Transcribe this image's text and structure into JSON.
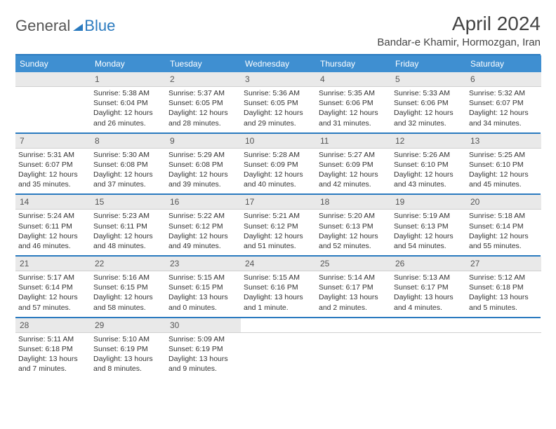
{
  "brand": {
    "part1": "General",
    "part2": "Blue"
  },
  "title": "April 2024",
  "location": "Bandar-e Khamir, Hormozgan, Iran",
  "weekdays": [
    "Sunday",
    "Monday",
    "Tuesday",
    "Wednesday",
    "Thursday",
    "Friday",
    "Saturday"
  ],
  "colors": {
    "accent": "#3f8fd1",
    "rule": "#2a7abf",
    "dayrow": "#e9e9e9"
  },
  "weeks": [
    {
      "nums": [
        "",
        "1",
        "2",
        "3",
        "4",
        "5",
        "6"
      ],
      "cells": [
        {
          "sunrise": "",
          "sunset": "",
          "daylight": ""
        },
        {
          "sunrise": "Sunrise: 5:38 AM",
          "sunset": "Sunset: 6:04 PM",
          "daylight": "Daylight: 12 hours and 26 minutes."
        },
        {
          "sunrise": "Sunrise: 5:37 AM",
          "sunset": "Sunset: 6:05 PM",
          "daylight": "Daylight: 12 hours and 28 minutes."
        },
        {
          "sunrise": "Sunrise: 5:36 AM",
          "sunset": "Sunset: 6:05 PM",
          "daylight": "Daylight: 12 hours and 29 minutes."
        },
        {
          "sunrise": "Sunrise: 5:35 AM",
          "sunset": "Sunset: 6:06 PM",
          "daylight": "Daylight: 12 hours and 31 minutes."
        },
        {
          "sunrise": "Sunrise: 5:33 AM",
          "sunset": "Sunset: 6:06 PM",
          "daylight": "Daylight: 12 hours and 32 minutes."
        },
        {
          "sunrise": "Sunrise: 5:32 AM",
          "sunset": "Sunset: 6:07 PM",
          "daylight": "Daylight: 12 hours and 34 minutes."
        }
      ]
    },
    {
      "nums": [
        "7",
        "8",
        "9",
        "10",
        "11",
        "12",
        "13"
      ],
      "cells": [
        {
          "sunrise": "Sunrise: 5:31 AM",
          "sunset": "Sunset: 6:07 PM",
          "daylight": "Daylight: 12 hours and 35 minutes."
        },
        {
          "sunrise": "Sunrise: 5:30 AM",
          "sunset": "Sunset: 6:08 PM",
          "daylight": "Daylight: 12 hours and 37 minutes."
        },
        {
          "sunrise": "Sunrise: 5:29 AM",
          "sunset": "Sunset: 6:08 PM",
          "daylight": "Daylight: 12 hours and 39 minutes."
        },
        {
          "sunrise": "Sunrise: 5:28 AM",
          "sunset": "Sunset: 6:09 PM",
          "daylight": "Daylight: 12 hours and 40 minutes."
        },
        {
          "sunrise": "Sunrise: 5:27 AM",
          "sunset": "Sunset: 6:09 PM",
          "daylight": "Daylight: 12 hours and 42 minutes."
        },
        {
          "sunrise": "Sunrise: 5:26 AM",
          "sunset": "Sunset: 6:10 PM",
          "daylight": "Daylight: 12 hours and 43 minutes."
        },
        {
          "sunrise": "Sunrise: 5:25 AM",
          "sunset": "Sunset: 6:10 PM",
          "daylight": "Daylight: 12 hours and 45 minutes."
        }
      ]
    },
    {
      "nums": [
        "14",
        "15",
        "16",
        "17",
        "18",
        "19",
        "20"
      ],
      "cells": [
        {
          "sunrise": "Sunrise: 5:24 AM",
          "sunset": "Sunset: 6:11 PM",
          "daylight": "Daylight: 12 hours and 46 minutes."
        },
        {
          "sunrise": "Sunrise: 5:23 AM",
          "sunset": "Sunset: 6:11 PM",
          "daylight": "Daylight: 12 hours and 48 minutes."
        },
        {
          "sunrise": "Sunrise: 5:22 AM",
          "sunset": "Sunset: 6:12 PM",
          "daylight": "Daylight: 12 hours and 49 minutes."
        },
        {
          "sunrise": "Sunrise: 5:21 AM",
          "sunset": "Sunset: 6:12 PM",
          "daylight": "Daylight: 12 hours and 51 minutes."
        },
        {
          "sunrise": "Sunrise: 5:20 AM",
          "sunset": "Sunset: 6:13 PM",
          "daylight": "Daylight: 12 hours and 52 minutes."
        },
        {
          "sunrise": "Sunrise: 5:19 AM",
          "sunset": "Sunset: 6:13 PM",
          "daylight": "Daylight: 12 hours and 54 minutes."
        },
        {
          "sunrise": "Sunrise: 5:18 AM",
          "sunset": "Sunset: 6:14 PM",
          "daylight": "Daylight: 12 hours and 55 minutes."
        }
      ]
    },
    {
      "nums": [
        "21",
        "22",
        "23",
        "24",
        "25",
        "26",
        "27"
      ],
      "cells": [
        {
          "sunrise": "Sunrise: 5:17 AM",
          "sunset": "Sunset: 6:14 PM",
          "daylight": "Daylight: 12 hours and 57 minutes."
        },
        {
          "sunrise": "Sunrise: 5:16 AM",
          "sunset": "Sunset: 6:15 PM",
          "daylight": "Daylight: 12 hours and 58 minutes."
        },
        {
          "sunrise": "Sunrise: 5:15 AM",
          "sunset": "Sunset: 6:15 PM",
          "daylight": "Daylight: 13 hours and 0 minutes."
        },
        {
          "sunrise": "Sunrise: 5:15 AM",
          "sunset": "Sunset: 6:16 PM",
          "daylight": "Daylight: 13 hours and 1 minute."
        },
        {
          "sunrise": "Sunrise: 5:14 AM",
          "sunset": "Sunset: 6:17 PM",
          "daylight": "Daylight: 13 hours and 2 minutes."
        },
        {
          "sunrise": "Sunrise: 5:13 AM",
          "sunset": "Sunset: 6:17 PM",
          "daylight": "Daylight: 13 hours and 4 minutes."
        },
        {
          "sunrise": "Sunrise: 5:12 AM",
          "sunset": "Sunset: 6:18 PM",
          "daylight": "Daylight: 13 hours and 5 minutes."
        }
      ]
    },
    {
      "nums": [
        "28",
        "29",
        "30",
        "",
        "",
        "",
        ""
      ],
      "cells": [
        {
          "sunrise": "Sunrise: 5:11 AM",
          "sunset": "Sunset: 6:18 PM",
          "daylight": "Daylight: 13 hours and 7 minutes."
        },
        {
          "sunrise": "Sunrise: 5:10 AM",
          "sunset": "Sunset: 6:19 PM",
          "daylight": "Daylight: 13 hours and 8 minutes."
        },
        {
          "sunrise": "Sunrise: 5:09 AM",
          "sunset": "Sunset: 6:19 PM",
          "daylight": "Daylight: 13 hours and 9 minutes."
        },
        {
          "sunrise": "",
          "sunset": "",
          "daylight": ""
        },
        {
          "sunrise": "",
          "sunset": "",
          "daylight": ""
        },
        {
          "sunrise": "",
          "sunset": "",
          "daylight": ""
        },
        {
          "sunrise": "",
          "sunset": "",
          "daylight": ""
        }
      ]
    }
  ]
}
